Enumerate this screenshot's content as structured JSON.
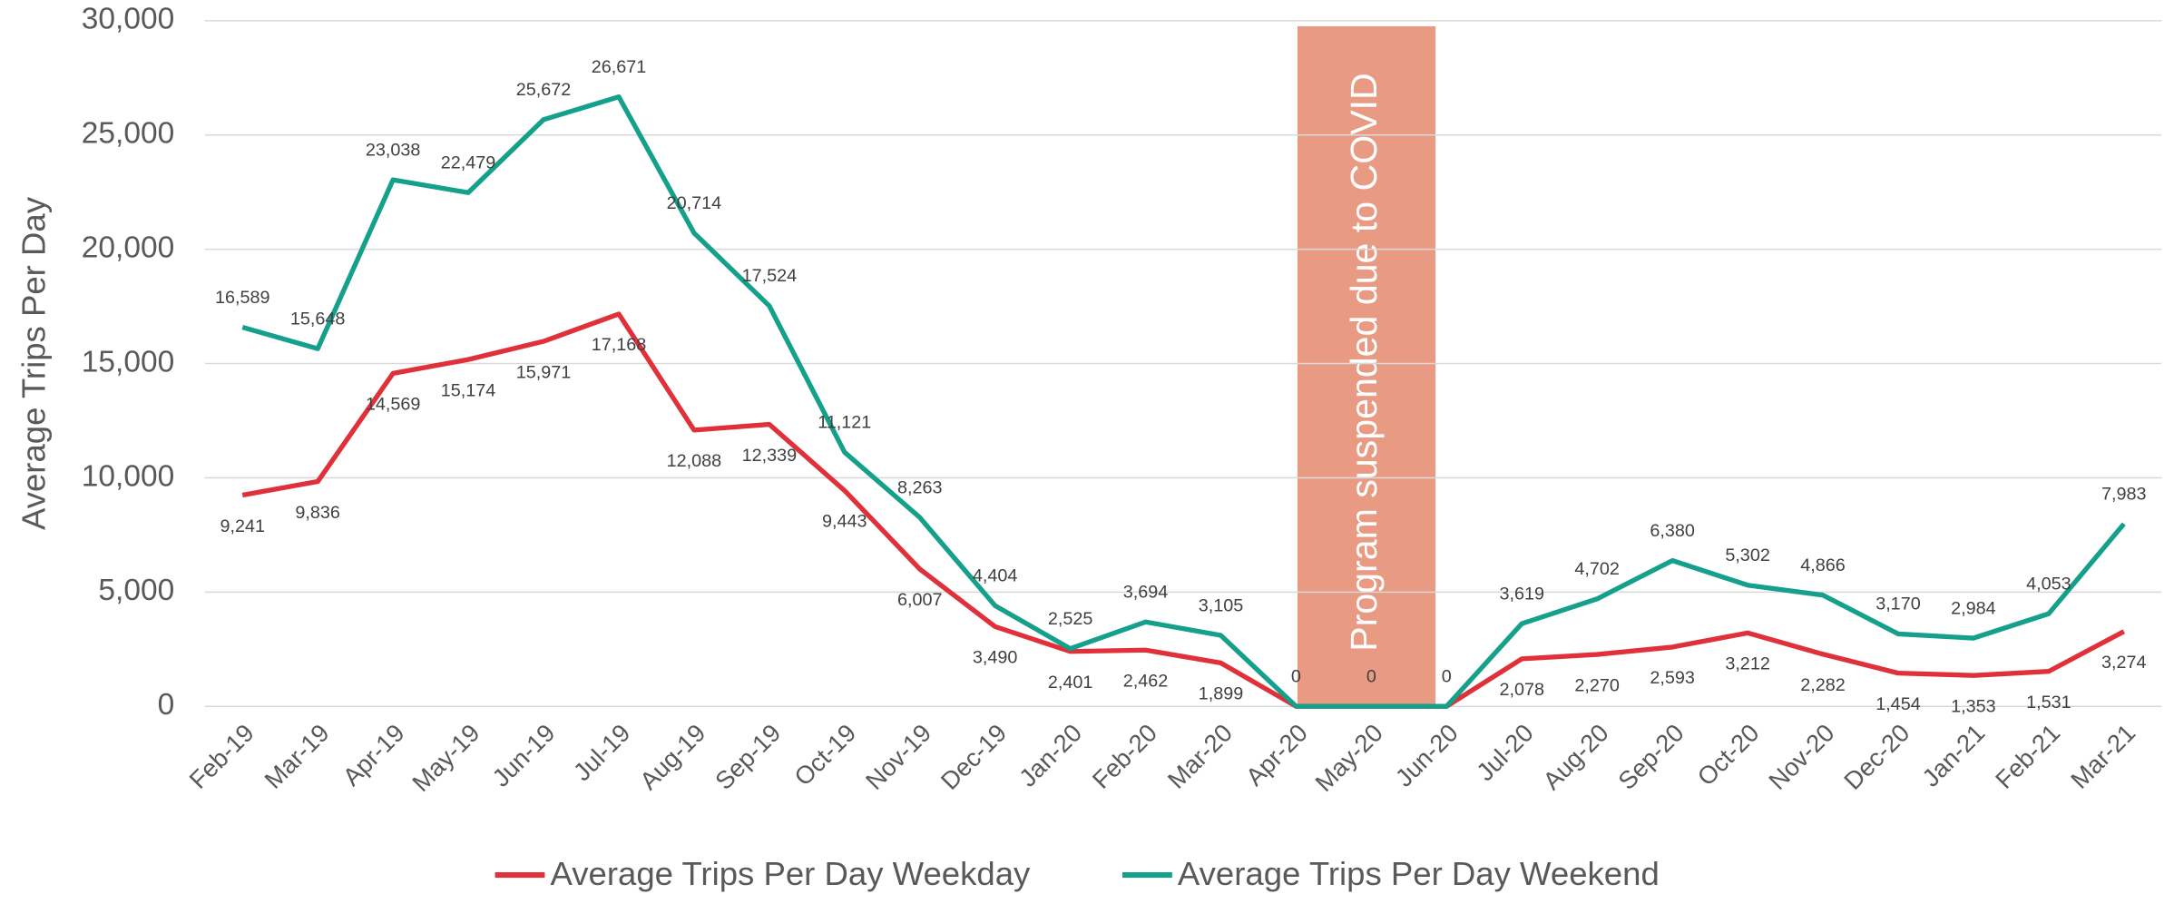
{
  "chart_data": {
    "type": "line",
    "y_axis_label": "Average Trips Per Day",
    "categories": [
      "Feb-19",
      "Mar-19",
      "Apr-19",
      "May-19",
      "Jun-19",
      "Jul-19",
      "Aug-19",
      "Sep-19",
      "Oct-19",
      "Nov-19",
      "Dec-19",
      "Jan-20",
      "Feb-20",
      "Mar-20",
      "Apr-20",
      "May-20",
      "Jun-20",
      "Jul-20",
      "Aug-20",
      "Sep-20",
      "Oct-20",
      "Nov-20",
      "Dec-20",
      "Jan-21",
      "Feb-21",
      "Mar-21"
    ],
    "series": [
      {
        "name": "Average Trips Per Day Weekday",
        "color": "#e0303a",
        "values": [
          9241,
          9836,
          14569,
          15174,
          15971,
          17168,
          12088,
          12339,
          9443,
          6007,
          3490,
          2401,
          2462,
          1899,
          0,
          0,
          0,
          2078,
          2270,
          2593,
          3212,
          2282,
          1454,
          1353,
          1531,
          3274
        ],
        "value_labels": [
          "9,241",
          "9,836",
          "14,569",
          "15,174",
          "15,971",
          "17,168",
          "12,088",
          "12,339",
          "9,443",
          "6,007",
          "3,490",
          "2,401",
          "2,462",
          "1,899",
          null,
          null,
          null,
          "2,078",
          "2,270",
          "2,593",
          "3,212",
          "2,282",
          "1,454",
          "1,353",
          "1,531",
          "3,274"
        ]
      },
      {
        "name": "Average Trips Per Day Weekend",
        "color": "#14a08a",
        "values": [
          16589,
          15648,
          23038,
          22479,
          25672,
          26671,
          20714,
          17524,
          11121,
          8263,
          4404,
          2525,
          3694,
          3105,
          0,
          0,
          0,
          3619,
          4702,
          6380,
          5302,
          4866,
          3170,
          2984,
          4053,
          7983
        ],
        "value_labels": [
          "16,589",
          "15,648",
          "23,038",
          "22,479",
          "25,672",
          "26,671",
          "20,714",
          "17,524",
          "11,121",
          "8,263",
          "4,404",
          "2,525",
          "3,694",
          "3,105",
          "0",
          "0",
          "0",
          "3,619",
          "4,702",
          "6,380",
          "5,302",
          "4,866",
          "3,170",
          "2,984",
          "4,053",
          "7,983"
        ]
      }
    ],
    "ylim": [
      0,
      30000
    ],
    "yticks": [
      0,
      {
        "value": 5000,
        "label": "5,000"
      },
      {
        "value": 10000,
        "label": "10,000"
      },
      {
        "value": 15000,
        "label": "15,000"
      },
      {
        "value": 20000,
        "label": "20,000"
      },
      {
        "value": 25000,
        "label": "25,000"
      },
      {
        "value": 30000,
        "label": "30,000"
      }
    ],
    "grid": true,
    "legend": "bottom",
    "annotation": {
      "text": "Program suspended due to COVID",
      "span": [
        "Apr-20",
        "Jun-20"
      ],
      "color": "#e8957c"
    }
  }
}
